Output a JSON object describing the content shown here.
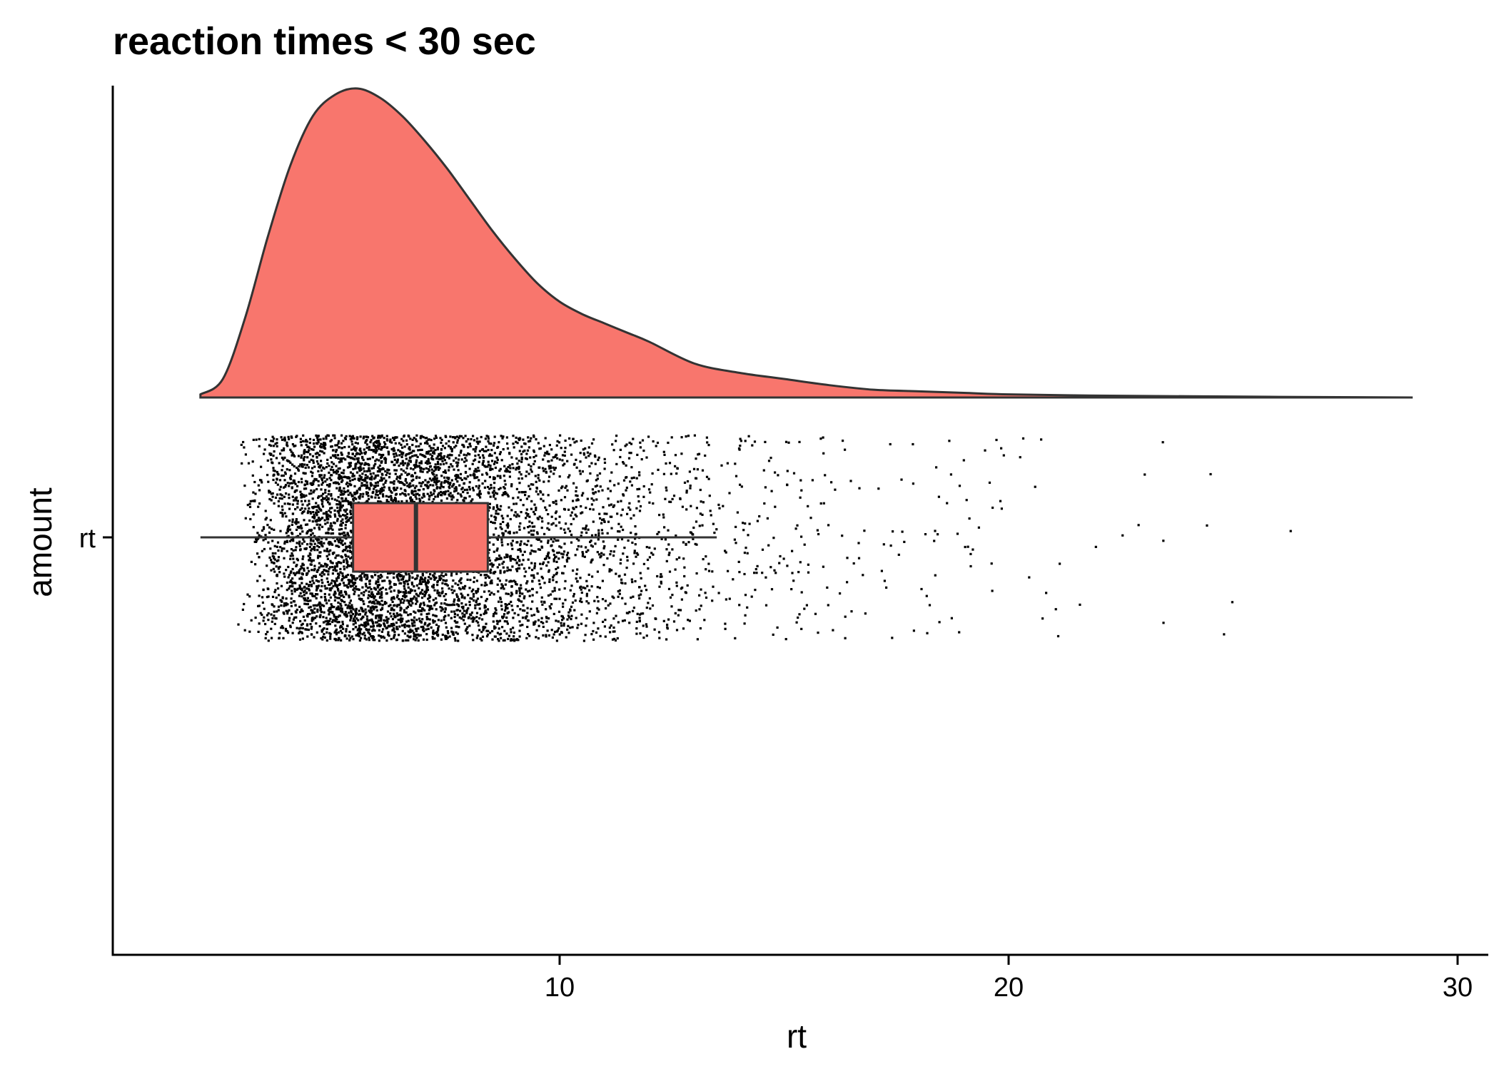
{
  "chart_data": {
    "type": "raincloud",
    "title": "reaction times < 30 sec",
    "xlabel": "rt",
    "ylabel": "amount",
    "category": "rt",
    "xlim": [
      1.5,
      30.5
    ],
    "x_ticks": [
      10,
      20,
      30
    ],
    "x_tick_labels": [
      "10",
      "20",
      "30"
    ],
    "fill_color": "#F8766D",
    "outline_color": "#333333",
    "point_color": "#000000",
    "grid": false,
    "legend": "none",
    "density": {
      "x": [
        2.0,
        2.5,
        3.0,
        3.5,
        4.0,
        4.5,
        5.0,
        5.5,
        6.0,
        6.5,
        7.0,
        7.5,
        8.0,
        8.5,
        9.0,
        9.5,
        10.0,
        10.5,
        11.0,
        11.5,
        12.0,
        13.0,
        14.0,
        15.0,
        16.0,
        17.0,
        18.0,
        19.0,
        20.0,
        22.0,
        24.0,
        26.0,
        29.0
      ],
      "density": [
        0.01,
        0.06,
        0.26,
        0.52,
        0.75,
        0.91,
        0.98,
        1.0,
        0.97,
        0.91,
        0.83,
        0.74,
        0.64,
        0.54,
        0.45,
        0.37,
        0.31,
        0.27,
        0.24,
        0.21,
        0.18,
        0.11,
        0.08,
        0.06,
        0.04,
        0.025,
        0.02,
        0.015,
        0.01,
        0.006,
        0.004,
        0.002,
        0.0
      ]
    },
    "boxplot": {
      "min": 2.0,
      "q1": 5.4,
      "median": 6.8,
      "q3": 8.4,
      "max": 13.5
    },
    "points": {
      "count": 6000,
      "x_min": 2.0,
      "x_max": 29.1
    }
  }
}
